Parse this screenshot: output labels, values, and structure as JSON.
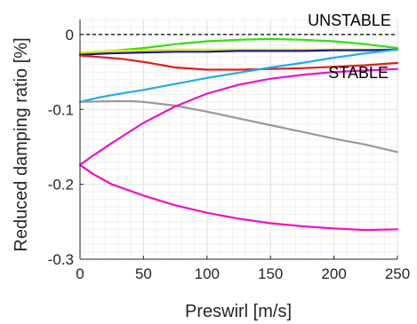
{
  "chart_data": {
    "type": "line",
    "title": "",
    "xlabel": "Preswirl [m/s]",
    "ylabel": "Reduced damping ratio [%]",
    "xlim": [
      0,
      250
    ],
    "ylim": [
      -0.3,
      0.02
    ],
    "xticks": [
      0,
      50,
      100,
      150,
      200,
      250
    ],
    "xtick_labels": [
      "0",
      "50",
      "100",
      "150",
      "200",
      "250"
    ],
    "yticks": [
      0,
      -0.1,
      -0.2,
      -0.3
    ],
    "ytick_labels": [
      "0",
      "-0.1",
      "-0.2",
      "-0.3"
    ],
    "grid": true,
    "annotations": [
      {
        "text": "UNSTABLE",
        "x": 245,
        "y": 0.012
      },
      {
        "text": "STABLE",
        "x": 243,
        "y": -0.058
      }
    ],
    "reference_line": {
      "y": 0,
      "style": "dashed",
      "color": "#000000"
    },
    "series": [
      {
        "color": "#33dd11",
        "x": [
          0,
          25,
          50,
          75,
          100,
          125,
          150,
          175,
          200,
          225,
          250
        ],
        "y": [
          -0.025,
          -0.022,
          -0.018,
          -0.013,
          -0.009,
          -0.007,
          -0.006,
          -0.007,
          -0.009,
          -0.013,
          -0.018
        ]
      },
      {
        "color": "#e6e61a",
        "x": [
          0,
          25,
          50,
          75,
          100,
          125,
          150,
          175,
          200,
          225,
          250
        ],
        "y": [
          -0.024,
          -0.022,
          -0.021,
          -0.02,
          -0.02,
          -0.02,
          -0.02,
          -0.02,
          -0.02,
          -0.02,
          -0.021
        ]
      },
      {
        "color": "#1a1a99",
        "x": [
          0,
          25,
          50,
          75,
          100,
          125,
          150,
          175,
          200,
          225,
          250
        ],
        "y": [
          -0.027,
          -0.025,
          -0.024,
          -0.023,
          -0.023,
          -0.022,
          -0.022,
          -0.022,
          -0.021,
          -0.021,
          -0.02
        ]
      },
      {
        "color": "#e61a1a",
        "x": [
          0,
          15,
          35,
          55,
          75,
          100,
          125,
          150,
          175,
          200,
          225,
          250
        ],
        "y": [
          -0.028,
          -0.03,
          -0.033,
          -0.038,
          -0.044,
          -0.047,
          -0.047,
          -0.046,
          -0.045,
          -0.043,
          -0.041,
          -0.038
        ]
      },
      {
        "color": "#22aaee",
        "x": [
          0,
          5,
          15,
          25,
          35,
          50,
          75,
          100,
          125,
          150,
          175,
          200,
          225,
          250
        ],
        "y": [
          -0.09,
          -0.088,
          -0.084,
          -0.081,
          -0.078,
          -0.074,
          -0.066,
          -0.058,
          -0.051,
          -0.044,
          -0.038,
          -0.031,
          -0.025,
          -0.02
        ]
      },
      {
        "color": "#999999",
        "x": [
          0,
          25,
          40,
          50,
          75,
          100,
          125,
          150,
          175,
          200,
          225,
          250
        ],
        "y": [
          -0.09,
          -0.089,
          -0.089,
          -0.09,
          -0.095,
          -0.103,
          -0.112,
          -0.121,
          -0.13,
          -0.139,
          -0.147,
          -0.157
        ]
      },
      {
        "color": "#ee11cc",
        "x": [
          0,
          10,
          25,
          50,
          75,
          100,
          125,
          150,
          175,
          200,
          225,
          250
        ],
        "y": [
          -0.174,
          -0.162,
          -0.145,
          -0.118,
          -0.096,
          -0.079,
          -0.067,
          -0.059,
          -0.054,
          -0.05,
          -0.048,
          -0.046
        ]
      },
      {
        "color": "#ee11cc",
        "x": [
          0,
          10,
          25,
          50,
          75,
          100,
          125,
          150,
          175,
          200,
          225,
          250
        ],
        "y": [
          -0.174,
          -0.186,
          -0.2,
          -0.215,
          -0.228,
          -0.238,
          -0.246,
          -0.252,
          -0.256,
          -0.259,
          -0.261,
          -0.26
        ]
      }
    ]
  }
}
